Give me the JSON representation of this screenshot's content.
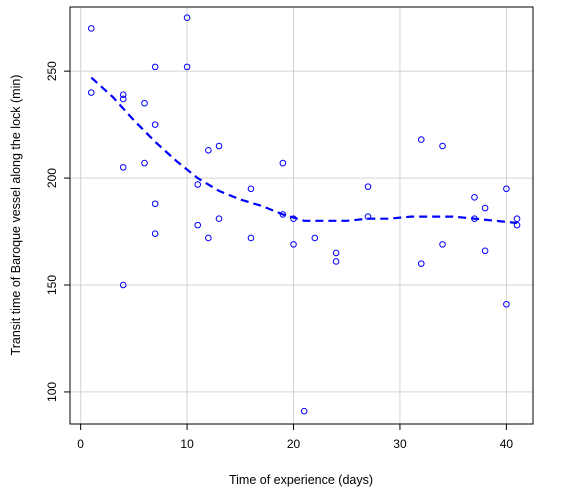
{
  "chart_data": {
    "type": "scatter",
    "xlabel": "Time of experience (days)",
    "ylabel": "Transit time of Baroque vessel along the lock (min)",
    "xlim": [
      -1,
      42.5
    ],
    "ylim": [
      85,
      280
    ],
    "xticks": [
      0,
      10,
      20,
      30,
      40
    ],
    "yticks": [
      100,
      150,
      200,
      250
    ],
    "grid": true,
    "point_color": "#0000ff",
    "line_color": "#0000ff",
    "points": [
      {
        "x": 1,
        "y": 270
      },
      {
        "x": 1,
        "y": 240
      },
      {
        "x": 4,
        "y": 239
      },
      {
        "x": 4,
        "y": 237
      },
      {
        "x": 4,
        "y": 205
      },
      {
        "x": 4,
        "y": 150
      },
      {
        "x": 6,
        "y": 235
      },
      {
        "x": 6,
        "y": 207
      },
      {
        "x": 7,
        "y": 252
      },
      {
        "x": 7,
        "y": 225
      },
      {
        "x": 7,
        "y": 188
      },
      {
        "x": 7,
        "y": 174
      },
      {
        "x": 10,
        "y": 275
      },
      {
        "x": 10,
        "y": 252
      },
      {
        "x": 11,
        "y": 197
      },
      {
        "x": 11,
        "y": 178
      },
      {
        "x": 12,
        "y": 213
      },
      {
        "x": 12,
        "y": 172
      },
      {
        "x": 13,
        "y": 215
      },
      {
        "x": 13,
        "y": 181
      },
      {
        "x": 16,
        "y": 195
      },
      {
        "x": 16,
        "y": 172
      },
      {
        "x": 19,
        "y": 207
      },
      {
        "x": 19,
        "y": 183
      },
      {
        "x": 20,
        "y": 181
      },
      {
        "x": 20,
        "y": 169
      },
      {
        "x": 21,
        "y": 91
      },
      {
        "x": 22,
        "y": 172
      },
      {
        "x": 24,
        "y": 165
      },
      {
        "x": 24,
        "y": 161
      },
      {
        "x": 27,
        "y": 196
      },
      {
        "x": 27,
        "y": 182
      },
      {
        "x": 32,
        "y": 218
      },
      {
        "x": 32,
        "y": 160
      },
      {
        "x": 34,
        "y": 215
      },
      {
        "x": 34,
        "y": 169
      },
      {
        "x": 37,
        "y": 191
      },
      {
        "x": 37,
        "y": 181
      },
      {
        "x": 38,
        "y": 186
      },
      {
        "x": 38,
        "y": 166
      },
      {
        "x": 40,
        "y": 195
      },
      {
        "x": 40,
        "y": 141
      },
      {
        "x": 41,
        "y": 181
      },
      {
        "x": 41,
        "y": 178
      }
    ],
    "smooth_line": {
      "x": [
        1,
        3,
        5,
        7,
        9,
        11,
        13,
        15,
        17,
        19,
        21,
        23,
        25,
        27,
        29,
        31,
        33,
        35,
        37,
        39,
        41
      ],
      "y": [
        247,
        238,
        227,
        217,
        208,
        200,
        194,
        190,
        187,
        183,
        180,
        180,
        180,
        181,
        181,
        182,
        182,
        182,
        181,
        180,
        179
      ]
    }
  }
}
